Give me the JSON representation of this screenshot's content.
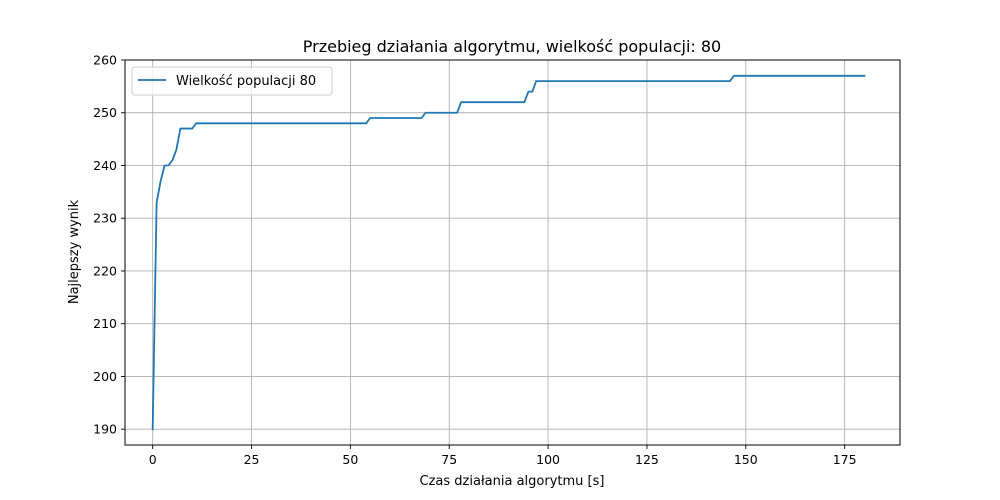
{
  "chart_data": {
    "type": "line",
    "title": "Przebieg działania algorytmu, wielkość populacji: 80",
    "xlabel": "Czas działania algorytmu [s]",
    "ylabel": "Najlepszy wynik",
    "xlim": [
      -7,
      189
    ],
    "ylim": [
      187,
      260
    ],
    "xticks": [
      0,
      25,
      50,
      75,
      100,
      125,
      150,
      175
    ],
    "yticks": [
      190,
      200,
      210,
      220,
      230,
      240,
      250,
      260
    ],
    "xtick_labels": [
      "0",
      "25",
      "50",
      "75",
      "100",
      "125",
      "150",
      "175"
    ],
    "ytick_labels": [
      "190",
      "200",
      "210",
      "220",
      "230",
      "240",
      "250",
      "260"
    ],
    "grid": true,
    "legend_position": "upper-left",
    "colors": {
      "series": "#1f77b4",
      "grid": "#b0b0b0",
      "axes": "#000000"
    },
    "series": [
      {
        "name": "Wielkość populacji 80",
        "x": [
          0,
          1,
          2,
          3,
          4,
          5,
          6,
          7,
          8,
          9,
          10,
          11,
          12,
          54,
          55,
          68,
          69,
          77,
          78,
          94,
          95,
          96,
          97,
          146,
          147,
          180
        ],
        "y": [
          190,
          233,
          237,
          240,
          240,
          241,
          243,
          247,
          247,
          247,
          247,
          248,
          248,
          248,
          249,
          249,
          250,
          250,
          252,
          252,
          254,
          254,
          256,
          256,
          257,
          257
        ]
      }
    ]
  }
}
